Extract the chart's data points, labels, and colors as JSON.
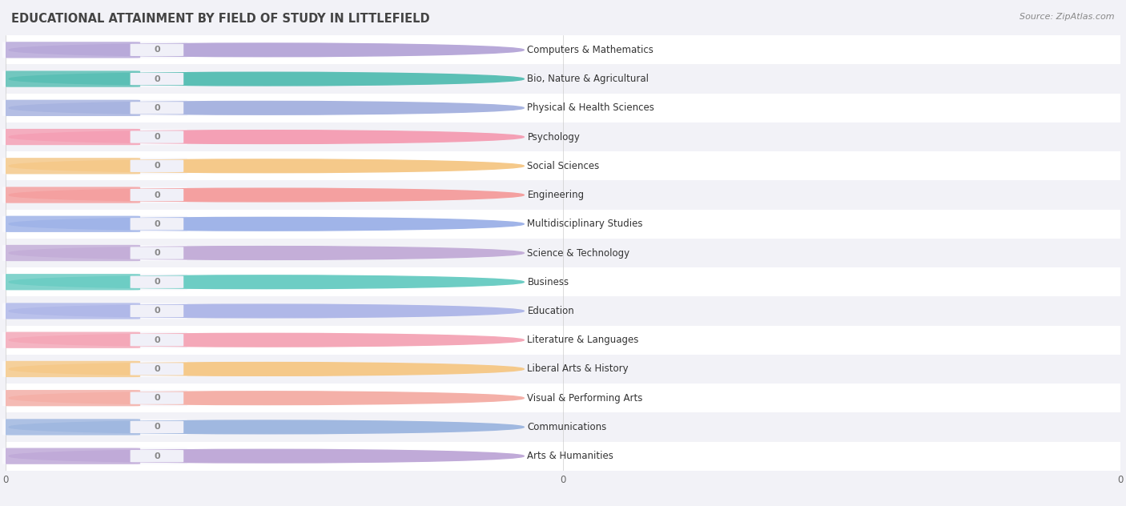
{
  "title": "EDUCATIONAL ATTAINMENT BY FIELD OF STUDY IN LITTLEFIELD",
  "source": "Source: ZipAtlas.com",
  "categories": [
    "Computers & Mathematics",
    "Bio, Nature & Agricultural",
    "Physical & Health Sciences",
    "Psychology",
    "Social Sciences",
    "Engineering",
    "Multidisciplinary Studies",
    "Science & Technology",
    "Business",
    "Education",
    "Literature & Languages",
    "Liberal Arts & History",
    "Visual & Performing Arts",
    "Communications",
    "Arts & Humanities"
  ],
  "values": [
    0,
    0,
    0,
    0,
    0,
    0,
    0,
    0,
    0,
    0,
    0,
    0,
    0,
    0,
    0
  ],
  "bar_colors": [
    "#b8a9d9",
    "#5bbfb5",
    "#a8b4e0",
    "#f4a0b5",
    "#f5c98a",
    "#f4a0a0",
    "#a0b4e8",
    "#c4aed8",
    "#6dcdc4",
    "#b0b8e8",
    "#f4a8b8",
    "#f5c98a",
    "#f4b0a8",
    "#a0b8e0",
    "#c0aad8"
  ],
  "background_color": "#f2f2f7",
  "row_colors": [
    "#ffffff",
    "#f2f2f7"
  ],
  "bar_bg_color": "#e8e8f0",
  "title_fontsize": 10.5,
  "label_fontsize": 8.5,
  "value_fontsize": 8,
  "source_fontsize": 8
}
